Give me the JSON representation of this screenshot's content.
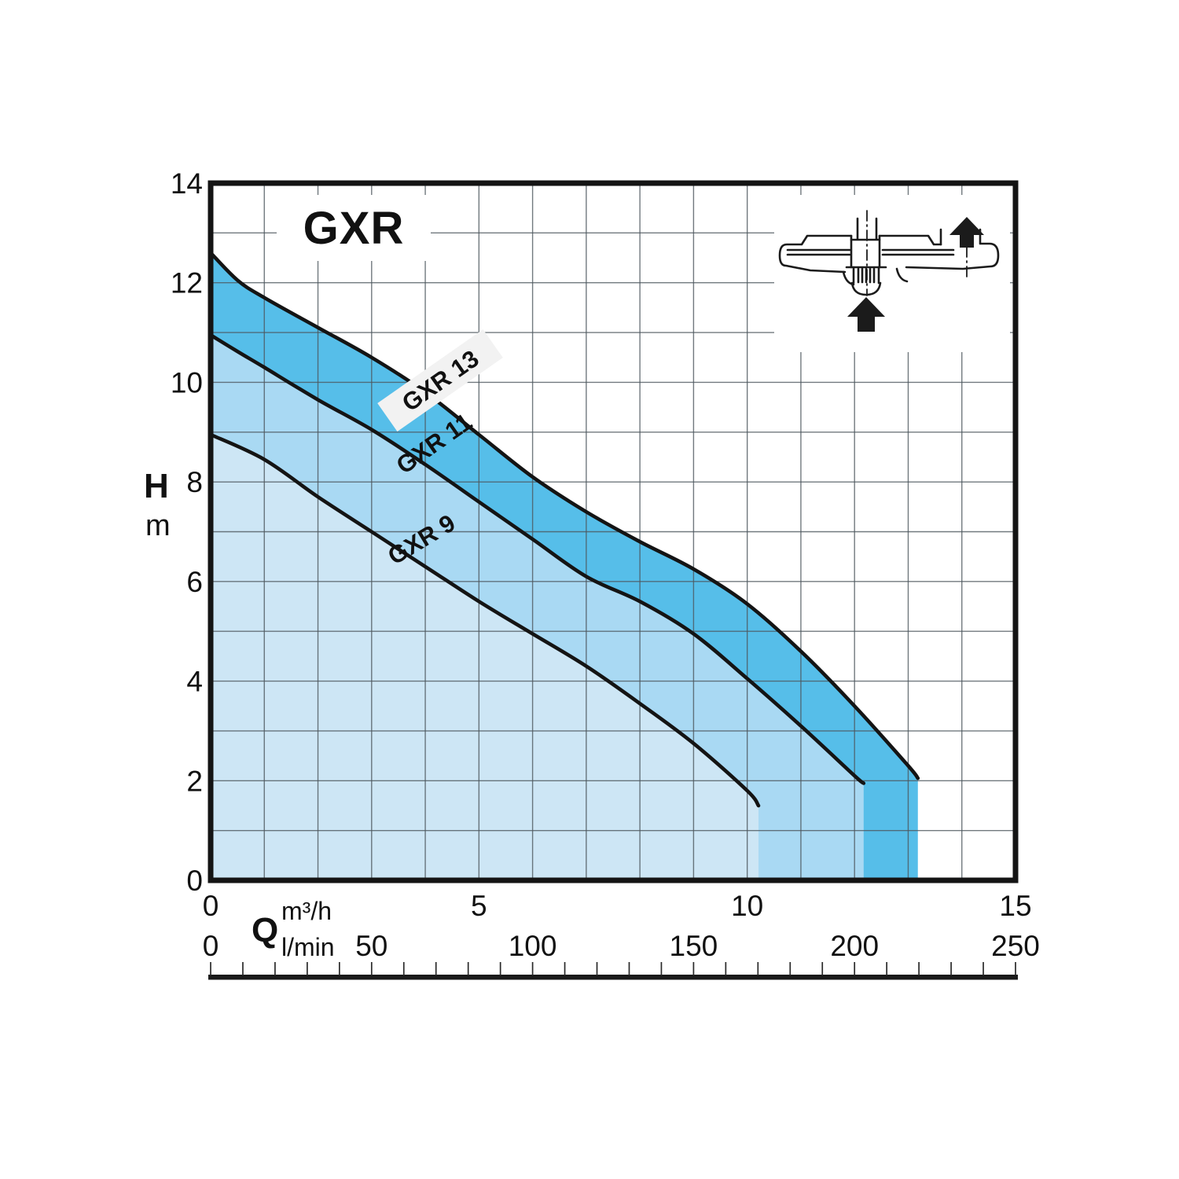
{
  "page": {
    "background": "#ffffff"
  },
  "chart_data": {
    "type": "line",
    "title": "GXR",
    "y_axis": {
      "label": "H",
      "unit": "m",
      "range": [
        0,
        14
      ],
      "ticks": [
        0,
        2,
        4,
        6,
        8,
        10,
        12,
        14
      ],
      "grid_step": 1
    },
    "x_axis_primary": {
      "label": "Q",
      "unit": "m³/h",
      "range": [
        0,
        15
      ],
      "ticks": [
        0,
        5,
        10,
        15
      ],
      "grid_step": 1
    },
    "x_axis_secondary": {
      "unit": "l/min",
      "range": [
        0,
        250
      ],
      "ticks": [
        0,
        50,
        100,
        150,
        200,
        250
      ],
      "minor_tick_step": 10
    },
    "grid": true,
    "legend_position": "labels-on-curves",
    "series": [
      {
        "name": "GXR 13",
        "band_color": "#56bee9",
        "points": [
          [
            0,
            12.6
          ],
          [
            0.5,
            12.05
          ],
          [
            1,
            11.7
          ],
          [
            2,
            11.1
          ],
          [
            3,
            10.5
          ],
          [
            4,
            9.8
          ],
          [
            5,
            8.95
          ],
          [
            6,
            8.1
          ],
          [
            7,
            7.4
          ],
          [
            8,
            6.8
          ],
          [
            9,
            6.25
          ],
          [
            10,
            5.55
          ],
          [
            11,
            4.6
          ],
          [
            12,
            3.5
          ],
          [
            13,
            2.3
          ],
          [
            13.18,
            2.05
          ]
        ]
      },
      {
        "name": "GXR 11",
        "band_color": "#a9d9f3",
        "points": [
          [
            0,
            10.95
          ],
          [
            0.5,
            10.62
          ],
          [
            1,
            10.3
          ],
          [
            2,
            9.65
          ],
          [
            3,
            9.05
          ],
          [
            4,
            8.35
          ],
          [
            5,
            7.6
          ],
          [
            6,
            6.85
          ],
          [
            7,
            6.1
          ],
          [
            8,
            5.6
          ],
          [
            9,
            4.95
          ],
          [
            10,
            4.05
          ],
          [
            11,
            3.1
          ],
          [
            12,
            2.1
          ],
          [
            12.17,
            1.95
          ]
        ]
      },
      {
        "name": "GXR 9",
        "band_color": "#cde6f5",
        "points": [
          [
            0,
            8.95
          ],
          [
            1,
            8.45
          ],
          [
            2,
            7.7
          ],
          [
            3,
            7.0
          ],
          [
            4,
            6.3
          ],
          [
            5,
            5.6
          ],
          [
            6,
            4.95
          ],
          [
            7,
            4.3
          ],
          [
            8,
            3.55
          ],
          [
            9,
            2.75
          ],
          [
            10,
            1.8
          ],
          [
            10.21,
            1.5
          ]
        ]
      }
    ]
  },
  "icons": {
    "pump_section": "pump-cross-section-with-flow-arrows"
  },
  "colors": {
    "band_dark": "#56bee9",
    "band_mid": "#a9d9f3",
    "band_light": "#cde6f5",
    "grid": "#4e585f",
    "curve": "#141414",
    "border": "#141414",
    "label_bg": "#f2f2f2",
    "ruler": "#1a1a1a"
  }
}
